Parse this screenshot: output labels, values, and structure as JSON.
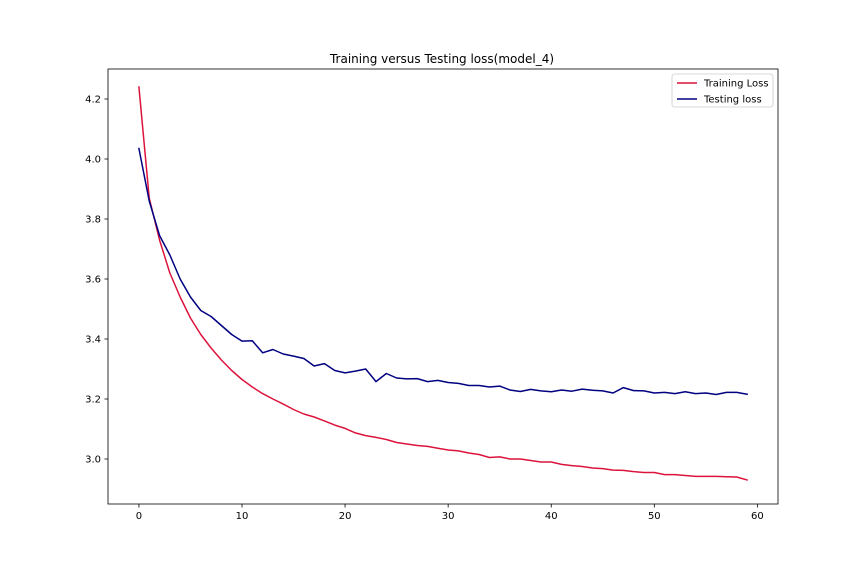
{
  "chart_data": {
    "type": "line",
    "title": "Training versus Testing loss(model_4)",
    "xlabel": "",
    "ylabel": "",
    "xlim": [
      -3,
      62
    ],
    "ylim": [
      2.85,
      4.3
    ],
    "xticks": [
      0,
      10,
      20,
      30,
      40,
      50,
      60
    ],
    "yticks": [
      3.0,
      3.2,
      3.4,
      3.6,
      3.8,
      4.0,
      4.2
    ],
    "xtick_labels": [
      "0",
      "10",
      "20",
      "30",
      "40",
      "50",
      "60"
    ],
    "ytick_labels": [
      "3.0",
      "3.2",
      "3.4",
      "3.6",
      "3.8",
      "4.0",
      "4.2"
    ],
    "grid": false,
    "legend_position": "top-right",
    "x": [
      0,
      1,
      2,
      3,
      4,
      5,
      6,
      7,
      8,
      9,
      10,
      11,
      12,
      13,
      14,
      15,
      16,
      17,
      18,
      19,
      20,
      21,
      22,
      23,
      24,
      25,
      26,
      27,
      28,
      29,
      30,
      31,
      32,
      33,
      34,
      35,
      36,
      37,
      38,
      39,
      40,
      41,
      42,
      43,
      44,
      45,
      46,
      47,
      48,
      49,
      50,
      51,
      52,
      53,
      54,
      55,
      56,
      57,
      58,
      59
    ],
    "series": [
      {
        "name": "Training Loss",
        "color": "#dc143c",
        "values": [
          4.24,
          3.87,
          3.73,
          3.62,
          3.54,
          3.47,
          3.415,
          3.37,
          3.33,
          3.295,
          3.265,
          3.24,
          3.218,
          3.2,
          3.183,
          3.165,
          3.15,
          3.14,
          3.127,
          3.113,
          3.102,
          3.087,
          3.078,
          3.072,
          3.065,
          3.055,
          3.05,
          3.045,
          3.042,
          3.036,
          3.03,
          3.027,
          3.02,
          3.015,
          3.005,
          3.007,
          3.0,
          3.0,
          2.995,
          2.99,
          2.99,
          2.982,
          2.978,
          2.975,
          2.97,
          2.968,
          2.963,
          2.962,
          2.958,
          2.955,
          2.955,
          2.948,
          2.948,
          2.945,
          2.942,
          2.942,
          2.942,
          2.941,
          2.94,
          2.93
        ]
      },
      {
        "name": "Testing loss",
        "color": "#000080",
        "values": [
          4.035,
          3.86,
          3.745,
          3.68,
          3.6,
          3.54,
          3.495,
          3.475,
          3.445,
          3.415,
          3.393,
          3.394,
          3.354,
          3.365,
          3.35,
          3.343,
          3.335,
          3.31,
          3.318,
          3.295,
          3.287,
          3.293,
          3.3,
          3.258,
          3.285,
          3.27,
          3.267,
          3.268,
          3.258,
          3.262,
          3.255,
          3.252,
          3.245,
          3.245,
          3.24,
          3.243,
          3.23,
          3.225,
          3.232,
          3.227,
          3.224,
          3.23,
          3.226,
          3.233,
          3.229,
          3.227,
          3.22,
          3.238,
          3.228,
          3.227,
          3.22,
          3.222,
          3.218,
          3.224,
          3.218,
          3.22,
          3.215,
          3.222,
          3.222,
          3.216
        ]
      }
    ]
  }
}
